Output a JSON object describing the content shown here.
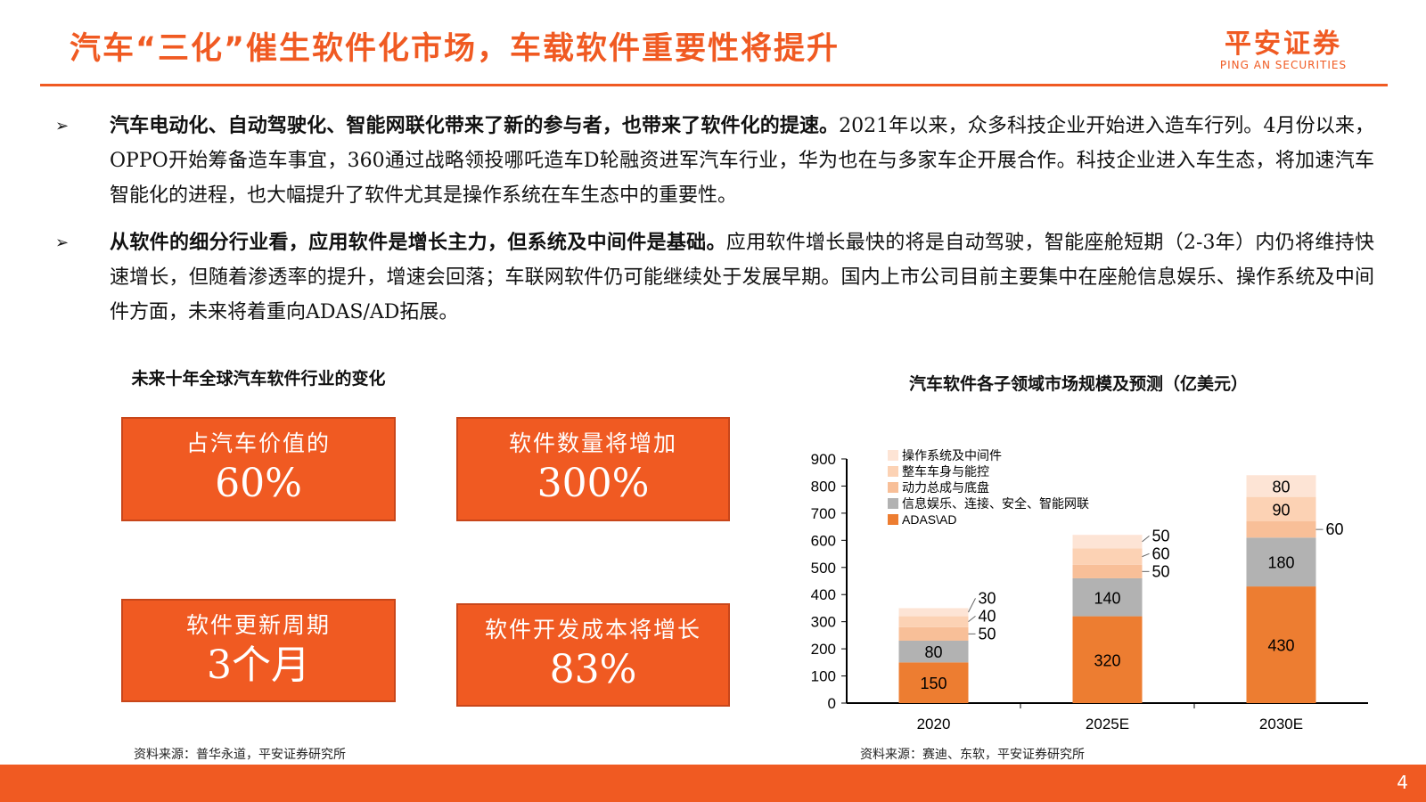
{
  "header": {
    "title": "汽车“三化”催生软件化市场，车载软件重要性将提升",
    "logo_cn": "平安证券",
    "logo_en": "PING AN SECURITIES"
  },
  "bullets": [
    {
      "bold": "汽车电动化、自动驾驶化、智能网联化带来了新的参与者，也带来了软件化的提速。",
      "text": "2021年以来，众多科技企业开始进入造车行列。4月份以来，OPPO开始筹备造车事宜，360通过战略领投哪吒造车D轮融资进军汽车行业，华为也在与多家车企开展合作。科技企业进入车生态，将加速汽车智能化的进程，也大幅提升了软件尤其是操作系统在车生态中的重要性。"
    },
    {
      "bold": "从软件的细分行业看，应用软件是增长主力，但系统及中间件是基础。",
      "text": "应用软件增长最快的将是自动驾驶，智能座舱短期（2-3年）内仍将维持快速增长，但随着渗透率的提升，增速会回落；车联网软件仍可能继续处于发展早期。国内上市公司目前主要集中在座舱信息娱乐、操作系统及中间件方面，未来将着重向ADAS/AD拓展。"
    }
  ],
  "left_panel": {
    "title": "未来十年全球汽车软件行业的变化",
    "boxes": [
      {
        "label": "占汽车价值的",
        "value": "60%"
      },
      {
        "label": "软件数量将增加",
        "value": "300%"
      },
      {
        "label": "软件更新周期",
        "value": "3个月"
      },
      {
        "label": "软件开发成本将增长",
        "value": "83%"
      }
    ],
    "source": "资料来源：普华永道，平安证券研究所"
  },
  "chart_data": {
    "type": "bar",
    "stacked": true,
    "title": "汽车软件各子领域市场规模及预测（亿美元）",
    "categories": [
      "2020",
      "2025E",
      "2030E"
    ],
    "ylim": [
      0,
      900
    ],
    "yticks": [
      "0",
      "100",
      "200",
      "300",
      "400",
      "500",
      "600",
      "700",
      "800",
      "900"
    ],
    "legend_position": "top-left",
    "series": [
      {
        "name": "ADAS\\AD",
        "values": [
          150,
          320,
          430
        ],
        "color": "#ed7d31"
      },
      {
        "name": "信息娱乐、连接、安全、智能网联",
        "values": [
          80,
          140,
          180
        ],
        "color": "#b2b2b2"
      },
      {
        "name": "动力总成与底盘",
        "values": [
          50,
          50,
          60
        ],
        "color": "#f8bf98"
      },
      {
        "name": "整车车身与能控",
        "values": [
          40,
          60,
          90
        ],
        "color": "#fcd2b4"
      },
      {
        "name": "操作系统及中间件",
        "values": [
          30,
          50,
          80
        ],
        "color": "#fde4d5"
      }
    ],
    "source": "资料来源：赛迪、东软，平安证券研究所"
  },
  "footer": {
    "page": "4"
  }
}
